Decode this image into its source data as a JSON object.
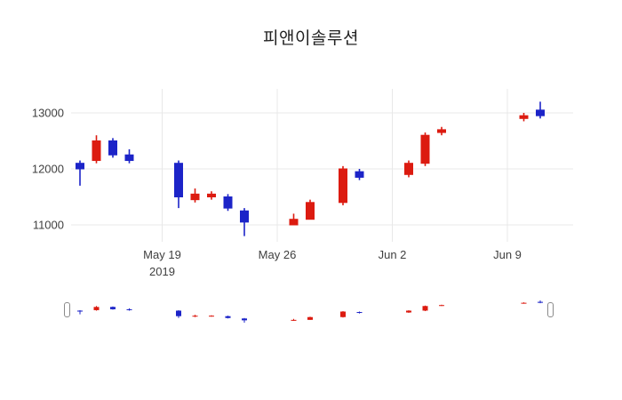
{
  "chart": {
    "title": "피앤이솔루션",
    "up_color": "#dc1b10",
    "down_color": "#1c24c8",
    "grid_color": "#e8e8e8",
    "axis_text_color": "#3f3f3f"
  },
  "chart_data": {
    "type": "candlestick",
    "title": "피앤이솔루션",
    "legend": "none",
    "grid": "on",
    "x_axis": {
      "ticks": [
        {
          "label": "May 19",
          "sublabel": "2019",
          "date": "2019-05-19"
        },
        {
          "label": "May 26",
          "date": "2019-05-26"
        },
        {
          "label": "Jun 2",
          "date": "2019-06-02"
        },
        {
          "label": "Jun 9",
          "date": "2019-06-09"
        }
      ]
    },
    "y_axis": {
      "ticks": [
        13000,
        12000,
        11000
      ],
      "range": [
        10650,
        13400
      ]
    },
    "candles": [
      {
        "date": "2019-05-14",
        "open": 12100,
        "high": 12150,
        "low": 11700,
        "close": 12000
      },
      {
        "date": "2019-05-15",
        "open": 12150,
        "high": 12600,
        "low": 12100,
        "close": 12500
      },
      {
        "date": "2019-05-16",
        "open": 12500,
        "high": 12550,
        "low": 12200,
        "close": 12250
      },
      {
        "date": "2019-05-17",
        "open": 12250,
        "high": 12350,
        "low": 12100,
        "close": 12150
      },
      {
        "date": "2019-05-20",
        "open": 12100,
        "high": 12150,
        "low": 11300,
        "close": 11500
      },
      {
        "date": "2019-05-21",
        "open": 11450,
        "high": 11650,
        "low": 11400,
        "close": 11550
      },
      {
        "date": "2019-05-22",
        "open": 11500,
        "high": 11600,
        "low": 11450,
        "close": 11550
      },
      {
        "date": "2019-05-23",
        "open": 11500,
        "high": 11550,
        "low": 11250,
        "close": 11300
      },
      {
        "date": "2019-05-24",
        "open": 11250,
        "high": 11300,
        "low": 10800,
        "close": 11050
      },
      {
        "date": "2019-05-27",
        "open": 11000,
        "high": 11200,
        "low": 11000,
        "close": 11100
      },
      {
        "date": "2019-05-28",
        "open": 11100,
        "high": 11450,
        "low": 11100,
        "close": 11400
      },
      {
        "date": "2019-05-30",
        "open": 11400,
        "high": 12050,
        "low": 11350,
        "close": 12000
      },
      {
        "date": "2019-05-31",
        "open": 11950,
        "high": 12000,
        "low": 11800,
        "close": 11850
      },
      {
        "date": "2019-06-03",
        "open": 11900,
        "high": 12150,
        "low": 11850,
        "close": 12100
      },
      {
        "date": "2019-06-04",
        "open": 12100,
        "high": 12650,
        "low": 12050,
        "close": 12600
      },
      {
        "date": "2019-06-05",
        "open": 12650,
        "high": 12750,
        "low": 12600,
        "close": 12700
      },
      {
        "date": "2019-06-10",
        "open": 12900,
        "high": 13000,
        "low": 12850,
        "close": 12950
      },
      {
        "date": "2019-06-11",
        "open": 13050,
        "high": 13200,
        "low": 12900,
        "close": 12950
      }
    ]
  },
  "rangeslider": {
    "visible": true
  }
}
